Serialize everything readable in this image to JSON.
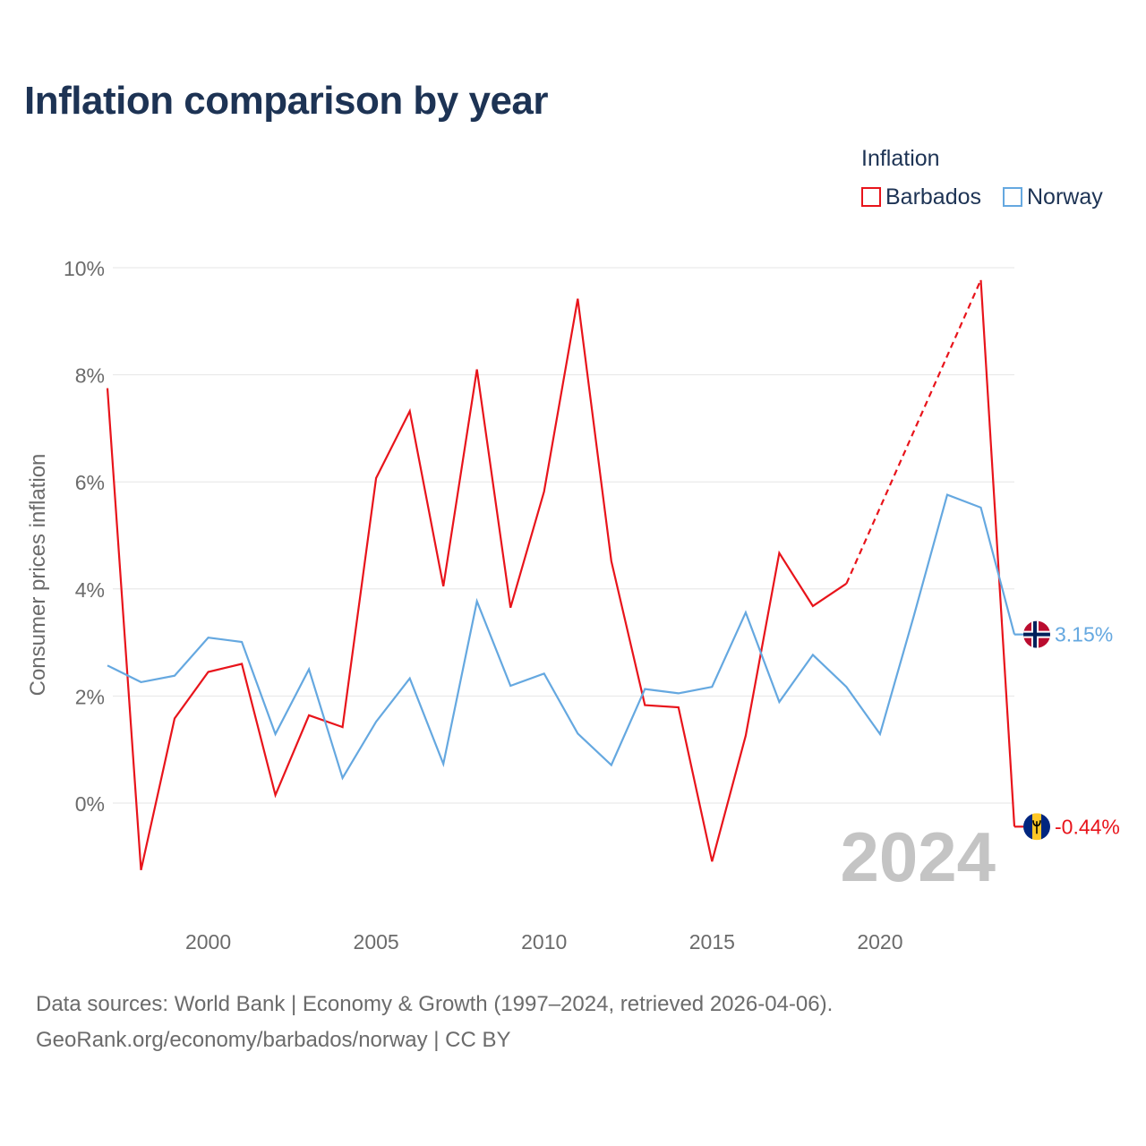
{
  "title": "Inflation comparison by year",
  "legend": {
    "title": "Inflation",
    "items": [
      {
        "label": "Barbados",
        "color": "#e8141b"
      },
      {
        "label": "Norway",
        "color": "#65a8e0"
      }
    ]
  },
  "footer": {
    "line1": "Data sources: World Bank | Economy & Growth (1997–2024, retrieved 2026-04-06).",
    "line2": "GeoRank.org/economy/barbados/norway | CC BY"
  },
  "chart_data": {
    "type": "line",
    "title": "Inflation comparison by year",
    "ylabel": "Consumer prices inflation",
    "xlabel": "",
    "xlim": [
      1997,
      2024
    ],
    "ylim": [
      -2,
      10
    ],
    "yticks": [
      0,
      2,
      4,
      6,
      8,
      10
    ],
    "ytick_labels": [
      "0%",
      "2%",
      "4%",
      "6%",
      "8%",
      "10%"
    ],
    "xticks": [
      2000,
      2005,
      2010,
      2015,
      2020
    ],
    "xtick_labels": [
      "2000",
      "2005",
      "2010",
      "2015",
      "2020"
    ],
    "grid": true,
    "year_watermark": "2024",
    "x": [
      1997,
      1998,
      1999,
      2000,
      2001,
      2002,
      2003,
      2004,
      2005,
      2006,
      2007,
      2008,
      2009,
      2010,
      2011,
      2012,
      2013,
      2014,
      2015,
      2016,
      2017,
      2018,
      2019,
      2020,
      2021,
      2022,
      2023,
      2024
    ],
    "series": [
      {
        "name": "Barbados",
        "color": "#e8141b",
        "values": [
          7.75,
          -1.25,
          1.58,
          2.45,
          2.6,
          0.15,
          1.64,
          1.42,
          6.07,
          7.32,
          4.05,
          8.1,
          3.65,
          5.82,
          9.42,
          4.52,
          1.83,
          1.79,
          -1.09,
          1.26,
          4.67,
          3.68,
          4.1,
          null,
          null,
          null,
          9.77,
          -0.44
        ],
        "gap_segment": {
          "from": 2019,
          "to": 2023,
          "style": "dashed"
        },
        "end_label": "-0.44%"
      },
      {
        "name": "Norway",
        "color": "#65a8e0",
        "values": [
          2.57,
          2.26,
          2.38,
          3.09,
          3.01,
          1.29,
          2.5,
          0.47,
          1.52,
          2.33,
          0.73,
          3.77,
          2.19,
          2.42,
          1.3,
          0.71,
          2.13,
          2.05,
          2.17,
          3.56,
          1.89,
          2.77,
          2.17,
          1.29,
          3.48,
          5.76,
          5.52,
          3.15
        ],
        "end_label": "3.15%"
      }
    ]
  }
}
